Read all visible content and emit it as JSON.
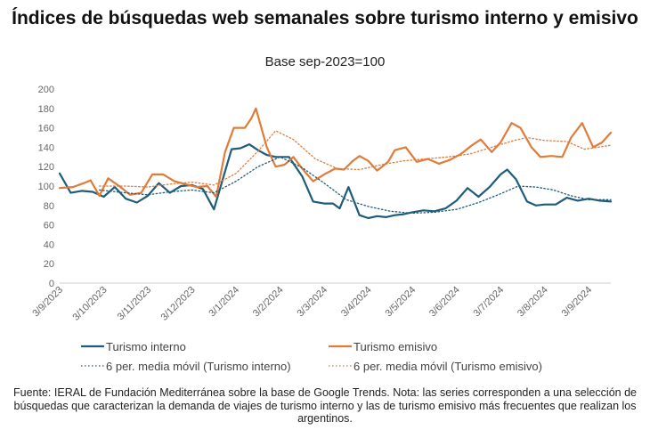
{
  "chart_data": {
    "type": "line",
    "title": "Índices de búsquedas web semanales sobre turismo interno y emisivo",
    "subtitle": "Base sep-2023=100",
    "ylim": [
      0,
      200
    ],
    "yticks": [
      0,
      20,
      40,
      60,
      80,
      100,
      120,
      140,
      160,
      180,
      200
    ],
    "xlabels": [
      "3/9/2023",
      "3/10/2023",
      "3/11/2023",
      "3/12/2023",
      "3/1/2024",
      "3/2/2024",
      "3/3/2024",
      "3/4/2024",
      "3/5/2024",
      "3/6/2024",
      "3/7/2024",
      "3/8/2024",
      "3/9/2024"
    ],
    "x_range": [
      0,
      12.5
    ],
    "series": [
      {
        "name": "Turismo interno",
        "color": "#1f5c7a",
        "style": "solid",
        "points": [
          [
            0.0,
            113
          ],
          [
            0.25,
            93
          ],
          [
            0.5,
            95
          ],
          [
            0.75,
            94
          ],
          [
            1.0,
            89
          ],
          [
            1.25,
            99
          ],
          [
            1.5,
            87
          ],
          [
            1.75,
            83
          ],
          [
            2.0,
            90
          ],
          [
            2.25,
            103
          ],
          [
            2.5,
            93
          ],
          [
            2.75,
            100
          ],
          [
            3.0,
            101
          ],
          [
            3.25,
            97
          ],
          [
            3.5,
            76
          ],
          [
            3.75,
            115
          ],
          [
            3.9,
            138
          ],
          [
            4.1,
            139
          ],
          [
            4.3,
            143
          ],
          [
            4.5,
            137
          ],
          [
            4.7,
            132
          ],
          [
            4.9,
            130
          ],
          [
            5.2,
            130
          ],
          [
            5.5,
            110
          ],
          [
            5.75,
            84
          ],
          [
            6.0,
            82
          ],
          [
            6.2,
            82
          ],
          [
            6.35,
            77
          ],
          [
            6.55,
            99
          ],
          [
            6.8,
            70
          ],
          [
            7.0,
            67
          ],
          [
            7.2,
            69
          ],
          [
            7.4,
            68
          ],
          [
            7.6,
            70
          ],
          [
            7.8,
            71
          ],
          [
            8.0,
            73
          ],
          [
            8.25,
            75
          ],
          [
            8.5,
            74
          ],
          [
            8.75,
            77
          ],
          [
            9.0,
            85
          ],
          [
            9.25,
            98
          ],
          [
            9.5,
            89
          ],
          [
            9.75,
            99
          ],
          [
            10.0,
            112
          ],
          [
            10.15,
            117
          ],
          [
            10.35,
            107
          ],
          [
            10.6,
            84
          ],
          [
            10.8,
            80
          ],
          [
            11.0,
            81
          ],
          [
            11.25,
            81
          ],
          [
            11.5,
            88
          ],
          [
            11.75,
            85
          ],
          [
            12.0,
            87
          ],
          [
            12.25,
            85
          ],
          [
            12.5,
            84
          ]
        ]
      },
      {
        "name": "Turismo emisivo",
        "color": "#e07b39",
        "style": "solid",
        "points": [
          [
            0.0,
            98
          ],
          [
            0.3,
            99
          ],
          [
            0.55,
            103
          ],
          [
            0.7,
            106
          ],
          [
            0.9,
            90
          ],
          [
            1.1,
            108
          ],
          [
            1.35,
            100
          ],
          [
            1.6,
            91
          ],
          [
            1.85,
            93
          ],
          [
            2.1,
            112
          ],
          [
            2.35,
            112
          ],
          [
            2.6,
            105
          ],
          [
            2.85,
            102
          ],
          [
            3.1,
            99
          ],
          [
            3.35,
            100
          ],
          [
            3.55,
            89
          ],
          [
            3.75,
            135
          ],
          [
            3.95,
            160
          ],
          [
            4.2,
            160
          ],
          [
            4.35,
            170
          ],
          [
            4.45,
            180
          ],
          [
            4.7,
            140
          ],
          [
            4.9,
            120
          ],
          [
            5.1,
            122
          ],
          [
            5.3,
            130
          ],
          [
            5.5,
            118
          ],
          [
            5.75,
            105
          ],
          [
            6.0,
            112
          ],
          [
            6.25,
            118
          ],
          [
            6.45,
            117
          ],
          [
            6.65,
            126
          ],
          [
            6.8,
            131
          ],
          [
            7.0,
            126
          ],
          [
            7.2,
            116
          ],
          [
            7.45,
            125
          ],
          [
            7.6,
            137
          ],
          [
            7.85,
            140
          ],
          [
            8.1,
            125
          ],
          [
            8.35,
            128
          ],
          [
            8.6,
            123
          ],
          [
            8.85,
            127
          ],
          [
            9.1,
            133
          ],
          [
            9.35,
            142
          ],
          [
            9.55,
            148
          ],
          [
            9.8,
            135
          ],
          [
            10.0,
            145
          ],
          [
            10.25,
            165
          ],
          [
            10.45,
            160
          ],
          [
            10.7,
            140
          ],
          [
            10.9,
            130
          ],
          [
            11.15,
            131
          ],
          [
            11.4,
            130
          ],
          [
            11.6,
            150
          ],
          [
            11.85,
            165
          ],
          [
            12.1,
            140
          ],
          [
            12.3,
            145
          ],
          [
            12.5,
            155
          ]
        ]
      },
      {
        "name": "6 per. media móvil (Turismo interno)",
        "color": "#1f5c7a",
        "style": "dotted",
        "points": [
          [
            0.9,
            96
          ],
          [
            1.5,
            93
          ],
          [
            2.0,
            91
          ],
          [
            2.5,
            94
          ],
          [
            3.0,
            96
          ],
          [
            3.5,
            93
          ],
          [
            4.0,
            105
          ],
          [
            4.5,
            120
          ],
          [
            5.0,
            130
          ],
          [
            5.5,
            119
          ],
          [
            6.0,
            103
          ],
          [
            6.5,
            86
          ],
          [
            7.0,
            79
          ],
          [
            7.5,
            74
          ],
          [
            8.0,
            72
          ],
          [
            8.5,
            73
          ],
          [
            9.0,
            76
          ],
          [
            9.5,
            83
          ],
          [
            10.0,
            92
          ],
          [
            10.4,
            100
          ],
          [
            10.8,
            99
          ],
          [
            11.2,
            96
          ],
          [
            11.6,
            90
          ],
          [
            12.0,
            86
          ],
          [
            12.5,
            86
          ]
        ]
      },
      {
        "name": "6 per. media móvil (Turismo emisivo)",
        "color": "#e07b39",
        "style": "dotted",
        "points": [
          [
            0.9,
            100
          ],
          [
            1.5,
            100
          ],
          [
            2.0,
            99
          ],
          [
            2.5,
            102
          ],
          [
            3.0,
            104
          ],
          [
            3.5,
            101
          ],
          [
            4.0,
            113
          ],
          [
            4.5,
            136
          ],
          [
            4.9,
            157
          ],
          [
            5.3,
            148
          ],
          [
            5.8,
            128
          ],
          [
            6.3,
            118
          ],
          [
            6.8,
            117
          ],
          [
            7.3,
            122
          ],
          [
            7.8,
            126
          ],
          [
            8.3,
            128
          ],
          [
            8.8,
            130
          ],
          [
            9.3,
            133
          ],
          [
            9.8,
            140
          ],
          [
            10.3,
            147
          ],
          [
            10.6,
            150
          ],
          [
            11.0,
            147
          ],
          [
            11.5,
            146
          ],
          [
            11.9,
            138
          ],
          [
            12.5,
            142
          ]
        ]
      }
    ],
    "legend": [
      "Turismo interno",
      "Turismo emisivo",
      "6 per. media móvil (Turismo interno)",
      "6 per. media móvil (Turismo emisivo)"
    ]
  },
  "source_note": "Fuente: IERAL de Fundación Mediterránea sobre la base de Google Trends. Nota: las series corresponden a una selección de búsquedas que caracterizan la demanda de viajes de turismo interno y las de turismo emisivo más frecuentes que realizan los argentinos."
}
